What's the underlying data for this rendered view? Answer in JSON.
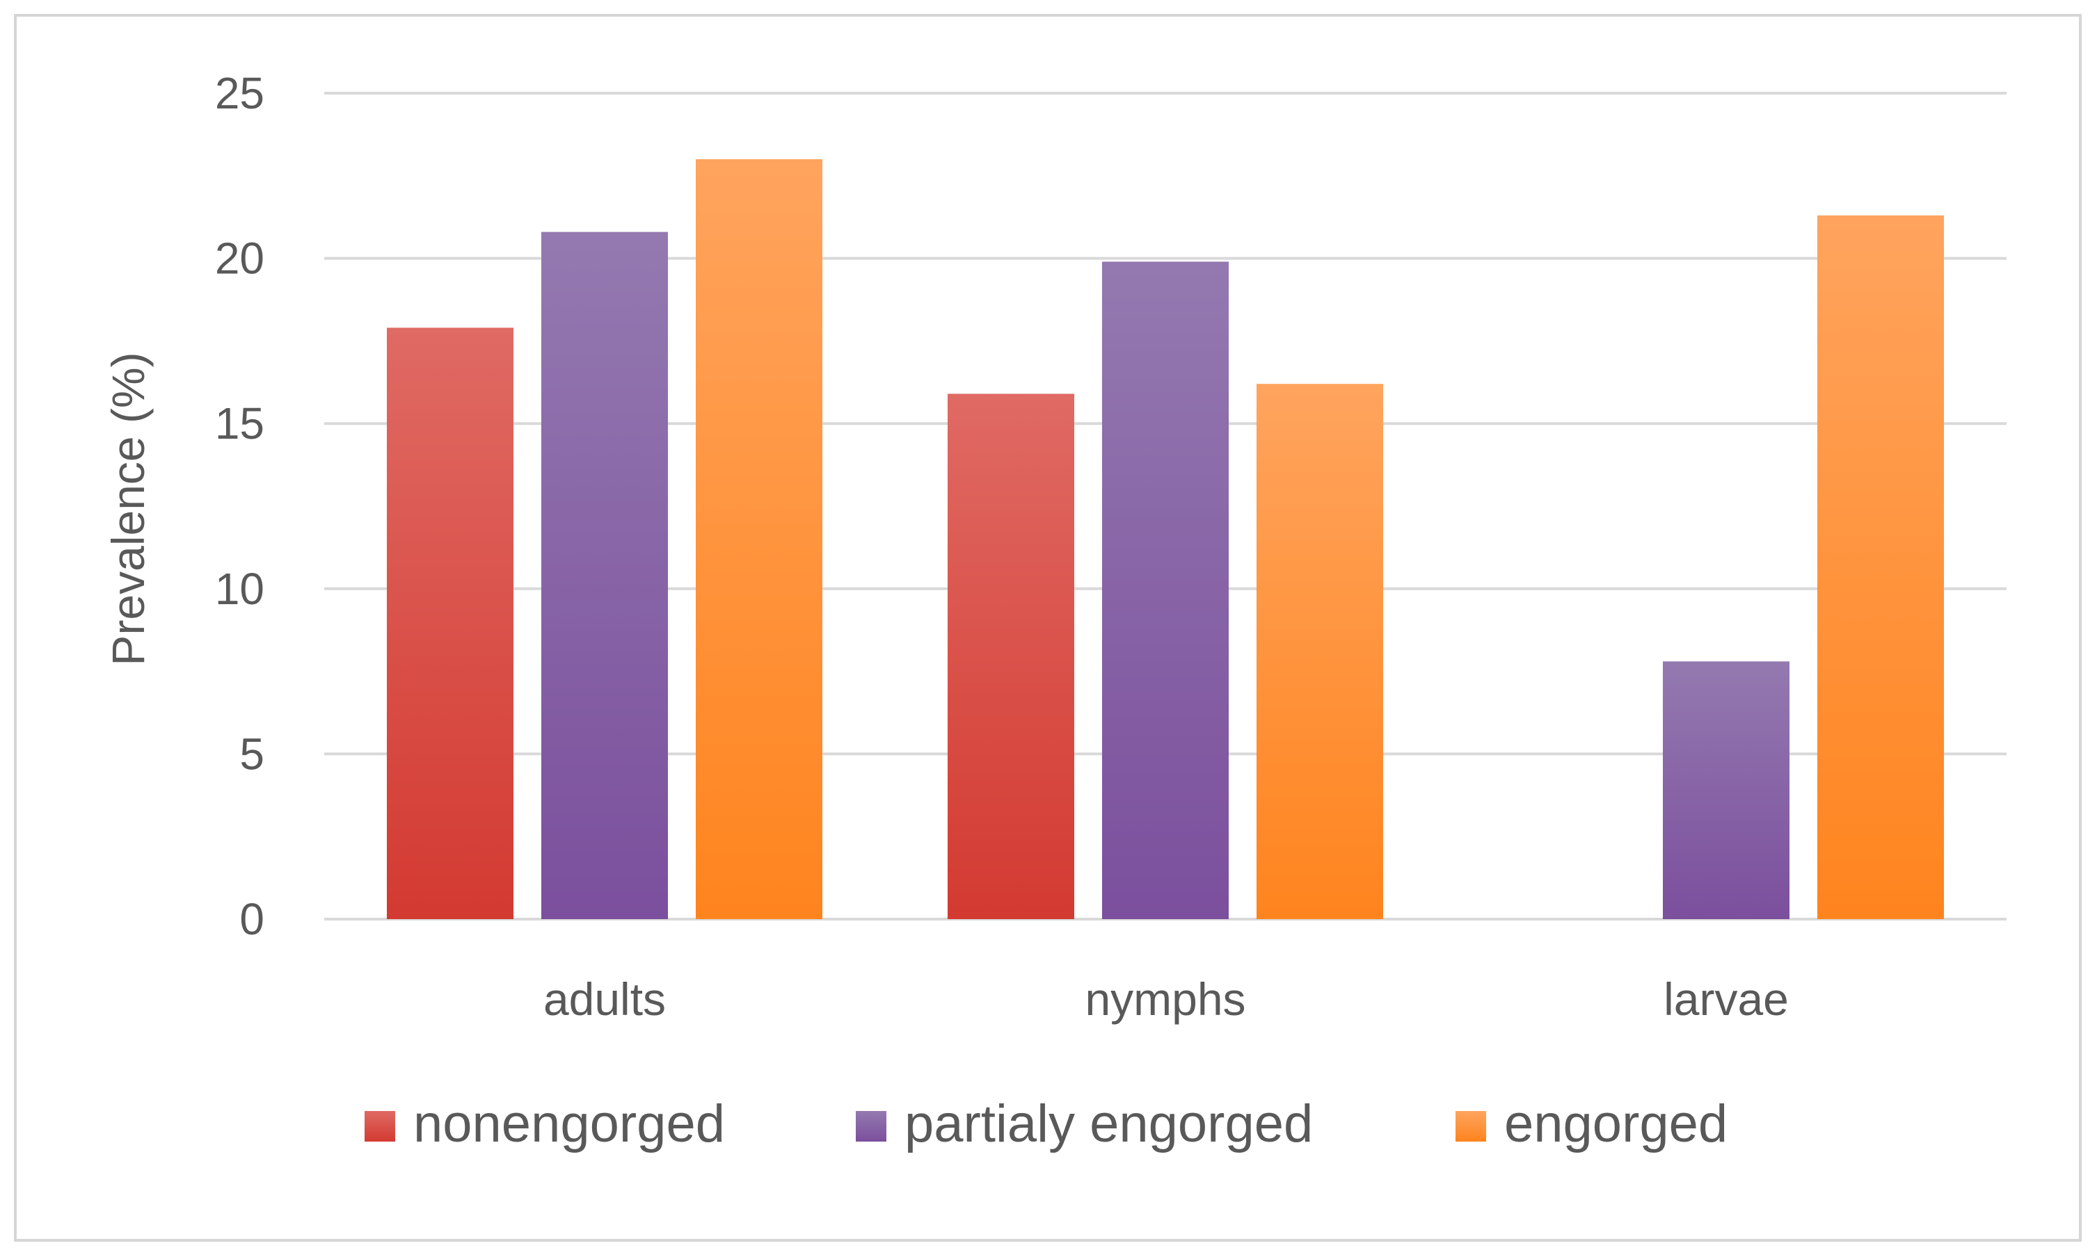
{
  "chart_data": {
    "type": "bar",
    "title": "",
    "xlabel": "",
    "ylabel": "Prevalence (%)",
    "categories": [
      "adults",
      "nymphs",
      "larvae"
    ],
    "series": [
      {
        "name": "nonengorged",
        "values": [
          17.9,
          15.9,
          0
        ],
        "color_top": "#e06a64",
        "color_bottom": "#d33a31"
      },
      {
        "name": "partialy engorged",
        "values": [
          20.8,
          19.9,
          7.8
        ],
        "color_top": "#9479b0",
        "color_bottom": "#7b4f9d"
      },
      {
        "name": "engorged",
        "values": [
          23.0,
          16.2,
          21.3
        ],
        "color_top": "#ffa45e",
        "color_bottom": "#ff841e"
      }
    ],
    "ylim": [
      0,
      25
    ],
    "yticks": [
      0,
      5,
      10,
      15,
      20,
      25
    ],
    "grid": true,
    "legend_position": "bottom"
  }
}
